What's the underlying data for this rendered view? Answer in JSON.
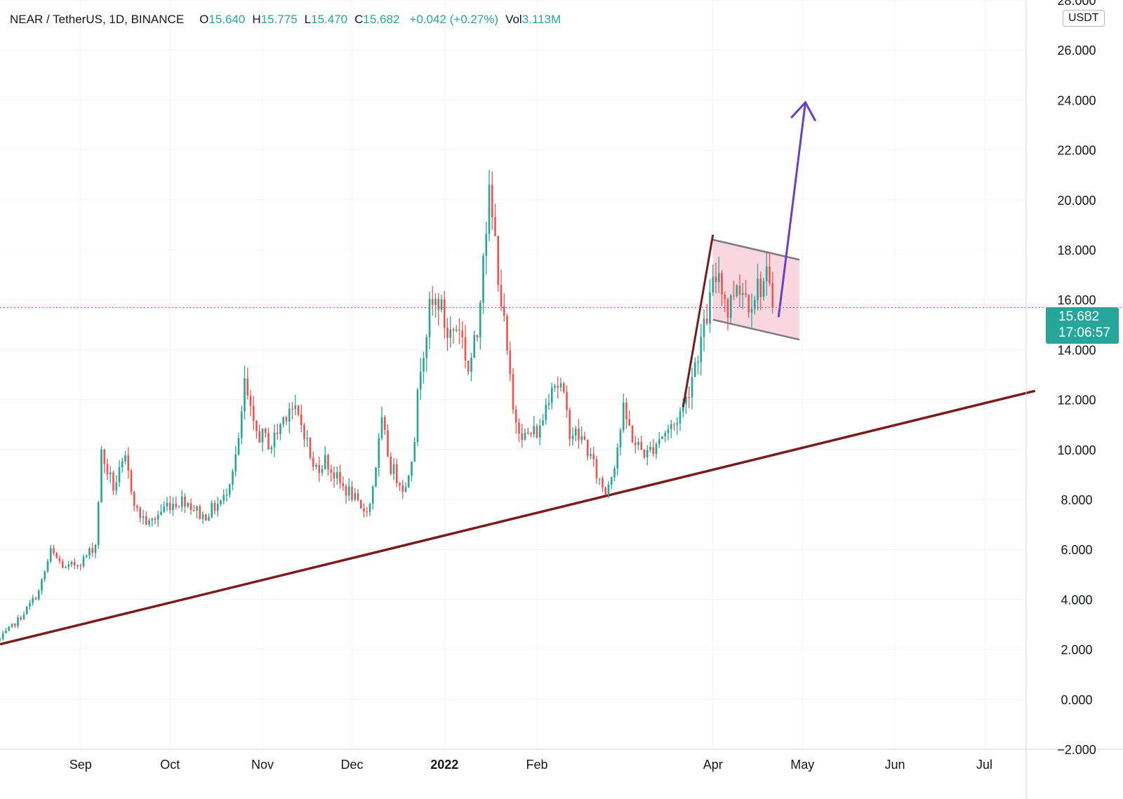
{
  "legend": {
    "symbol": "NEAR / TetherUS, 1D, BINANCE",
    "open_label": "O",
    "open": "15.640",
    "high_label": "H",
    "high": "15.775",
    "low_label": "L",
    "low": "15.470",
    "close_label": "C",
    "close": "15.682",
    "change": "+0.042 (+0.27%)",
    "volume_label": "Vol",
    "volume": "3.113M"
  },
  "currency": "USDT",
  "last_price": {
    "price": "15.682",
    "countdown": "17:06:57"
  },
  "colors": {
    "up": "#26a69a",
    "down": "#ef5350",
    "trendline": "#7b1c1c",
    "projection_arrow": "#6a3fc4",
    "channel_fill": "#f6c9d5",
    "channel_border": "#7a7a86",
    "grid": "#f0f3fa",
    "axis_text": "#131722",
    "price_line": "#26a69a"
  },
  "chart_data": {
    "type": "candlestick",
    "title": "NEAR / TetherUS, 1D, BINANCE",
    "y_axis": {
      "ticks": [
        "28.000",
        "26.000",
        "24.000",
        "22.000",
        "20.000",
        "18.000",
        "16.000",
        "14.000",
        "12.000",
        "10.000",
        "8.000",
        "6.000",
        "4.000",
        "2.000",
        "0.000",
        "−2.000"
      ],
      "ylim": [
        -2,
        28
      ],
      "position": "right"
    },
    "x_axis": {
      "ticks": [
        {
          "label": "Sep",
          "date": "2021-09-01"
        },
        {
          "label": "Oct",
          "date": "2021-10-01"
        },
        {
          "label": "Nov",
          "date": "2021-11-01"
        },
        {
          "label": "Dec",
          "date": "2021-12-01"
        },
        {
          "label": "2022",
          "date": "2022-01-01",
          "bold": true
        },
        {
          "label": "Feb",
          "date": "2022-02-01"
        },
        {
          "label": "Apr",
          "date": "2022-04-01"
        },
        {
          "label": "May",
          "date": "2022-05-01"
        },
        {
          "label": "Jun",
          "date": "2022-06-01"
        },
        {
          "label": "Jul",
          "date": "2022-07-01"
        }
      ],
      "xlim": [
        "2021-08-05",
        "2022-07-15"
      ]
    },
    "grid": true,
    "price_trajectory": [
      [
        "2021-08-05",
        2.4
      ],
      [
        "2021-08-12",
        3.3
      ],
      [
        "2021-08-18",
        4.3
      ],
      [
        "2021-08-22",
        5.9
      ],
      [
        "2021-08-27",
        5.2
      ],
      [
        "2021-09-02",
        5.6
      ],
      [
        "2021-09-06",
        6.2
      ],
      [
        "2021-09-08",
        9.8
      ],
      [
        "2021-09-12",
        8.5
      ],
      [
        "2021-09-16",
        9.5
      ],
      [
        "2021-09-20",
        7.5
      ],
      [
        "2021-09-24",
        7.0
      ],
      [
        "2021-09-30",
        7.8
      ],
      [
        "2021-10-06",
        8.0
      ],
      [
        "2021-10-12",
        7.3
      ],
      [
        "2021-10-19",
        8.0
      ],
      [
        "2021-10-24",
        10.2
      ],
      [
        "2021-10-26",
        12.6
      ],
      [
        "2021-10-29",
        10.8
      ],
      [
        "2021-11-04",
        10.2
      ],
      [
        "2021-11-10",
        11.8
      ],
      [
        "2021-11-15",
        10.8
      ],
      [
        "2021-11-18",
        9.2
      ],
      [
        "2021-11-22",
        9.6
      ],
      [
        "2021-11-27",
        8.6
      ],
      [
        "2021-12-01",
        8.2
      ],
      [
        "2021-12-04",
        7.5
      ],
      [
        "2021-12-07",
        7.8
      ],
      [
        "2021-12-11",
        11.0
      ],
      [
        "2021-12-14",
        9.3
      ],
      [
        "2021-12-19",
        8.4
      ],
      [
        "2021-12-22",
        10.6
      ],
      [
        "2021-12-24",
        13.5
      ],
      [
        "2021-12-27",
        15.5
      ],
      [
        "2021-12-30",
        16.0
      ],
      [
        "2022-01-02",
        14.6
      ],
      [
        "2022-01-06",
        15.0
      ],
      [
        "2022-01-09",
        13.2
      ],
      [
        "2022-01-12",
        14.6
      ],
      [
        "2022-01-14",
        18.2
      ],
      [
        "2022-01-16",
        20.0
      ],
      [
        "2022-01-18",
        18.3
      ],
      [
        "2022-01-20",
        16.0
      ],
      [
        "2022-01-22",
        13.8
      ],
      [
        "2022-01-24",
        11.5
      ],
      [
        "2022-01-28",
        10.5
      ],
      [
        "2022-02-02",
        10.8
      ],
      [
        "2022-02-06",
        12.8
      ],
      [
        "2022-02-09",
        12.5
      ],
      [
        "2022-02-12",
        10.8
      ],
      [
        "2022-02-17",
        10.3
      ],
      [
        "2022-02-21",
        9.0
      ],
      [
        "2022-02-24",
        8.3
      ],
      [
        "2022-02-27",
        9.5
      ],
      [
        "2022-03-02",
        11.5
      ],
      [
        "2022-03-06",
        10.2
      ],
      [
        "2022-03-10",
        9.8
      ],
      [
        "2022-03-14",
        10.5
      ],
      [
        "2022-03-19",
        11.0
      ],
      [
        "2022-03-23",
        12.0
      ],
      [
        "2022-03-26",
        13.5
      ],
      [
        "2022-03-29",
        14.8
      ],
      [
        "2022-04-01",
        16.5
      ],
      [
        "2022-04-03",
        17.2
      ],
      [
        "2022-04-06",
        15.5
      ],
      [
        "2022-04-09",
        16.8
      ],
      [
        "2022-04-13",
        16.0
      ],
      [
        "2022-04-16",
        16.5
      ],
      [
        "2022-04-19",
        16.8
      ],
      [
        "2022-04-21",
        15.682
      ]
    ],
    "annotations": {
      "support_trendline": {
        "from": [
          "2021-08-05",
          2.2
        ],
        "to": [
          "2022-07-18",
          12.35
        ]
      },
      "flagpole": {
        "from": [
          "2022-03-22",
          11.7
        ],
        "to": [
          "2022-04-01",
          18.6
        ]
      },
      "flag_channel": {
        "upper": {
          "from": [
            "2022-04-01",
            18.4
          ],
          "to": [
            "2022-04-30",
            17.6
          ]
        },
        "lower": {
          "from": [
            "2022-04-01",
            15.2
          ],
          "to": [
            "2022-04-30",
            14.4
          ]
        }
      },
      "projection_arrow": {
        "from": [
          "2022-04-23",
          15.3
        ],
        "to": [
          "2022-05-02",
          23.9
        ]
      },
      "last_price_line": 15.682
    }
  }
}
